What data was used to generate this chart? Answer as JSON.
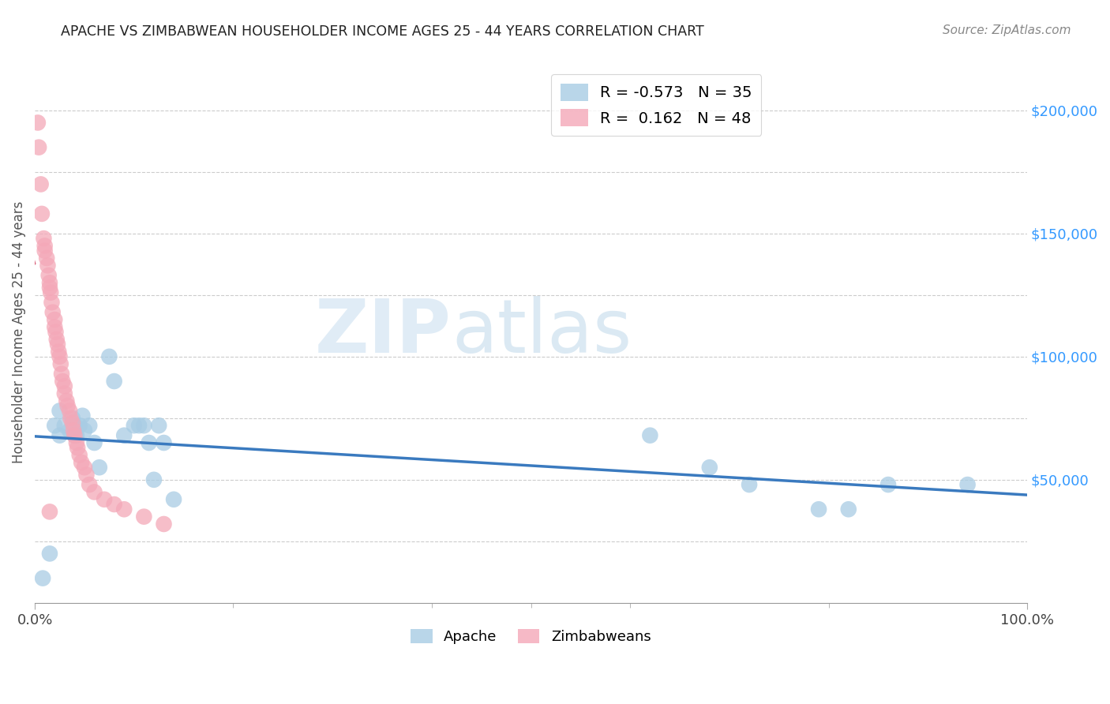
{
  "title": "APACHE VS ZIMBABWEAN HOUSEHOLDER INCOME AGES 25 - 44 YEARS CORRELATION CHART",
  "source": "Source: ZipAtlas.com",
  "ylabel": "Householder Income Ages 25 - 44 years",
  "xlim": [
    0.0,
    1.0
  ],
  "ylim": [
    0,
    220000
  ],
  "ytick_labels": [
    "$50,000",
    "$100,000",
    "$150,000",
    "$200,000"
  ],
  "ytick_values": [
    50000,
    100000,
    150000,
    200000
  ],
  "apache_color": "#a8cce4",
  "zimbabwean_color": "#f4a8b8",
  "apache_R": -0.573,
  "apache_N": 35,
  "zimbabwean_R": 0.162,
  "zimbabwean_N": 48,
  "apache_line_color": "#3a7abf",
  "zimbabwean_line_color": "#d9607a",
  "watermark_zip": "ZIP",
  "watermark_atlas": "atlas",
  "apache_x": [
    0.008,
    0.015,
    0.02,
    0.025,
    0.025,
    0.03,
    0.035,
    0.038,
    0.04,
    0.04,
    0.042,
    0.045,
    0.048,
    0.05,
    0.055,
    0.06,
    0.065,
    0.075,
    0.08,
    0.09,
    0.1,
    0.105,
    0.11,
    0.115,
    0.12,
    0.125,
    0.13,
    0.14,
    0.62,
    0.68,
    0.72,
    0.79,
    0.82,
    0.86,
    0.94
  ],
  "apache_y": [
    10000,
    20000,
    72000,
    68000,
    78000,
    72000,
    70000,
    75000,
    68000,
    72000,
    68000,
    72000,
    76000,
    70000,
    72000,
    65000,
    55000,
    100000,
    90000,
    68000,
    72000,
    72000,
    72000,
    65000,
    50000,
    72000,
    65000,
    42000,
    68000,
    55000,
    48000,
    38000,
    38000,
    48000,
    48000
  ],
  "zimbabwean_x": [
    0.003,
    0.004,
    0.006,
    0.007,
    0.009,
    0.01,
    0.01,
    0.012,
    0.013,
    0.014,
    0.015,
    0.015,
    0.016,
    0.017,
    0.018,
    0.02,
    0.02,
    0.021,
    0.022,
    0.023,
    0.024,
    0.025,
    0.026,
    0.027,
    0.028,
    0.03,
    0.03,
    0.032,
    0.033,
    0.035,
    0.036,
    0.038,
    0.039,
    0.04,
    0.042,
    0.043,
    0.045,
    0.047,
    0.05,
    0.052,
    0.055,
    0.06,
    0.07,
    0.08,
    0.09,
    0.11,
    0.13,
    0.015
  ],
  "zimbabwean_y": [
    195000,
    185000,
    170000,
    158000,
    148000,
    145000,
    143000,
    140000,
    137000,
    133000,
    130000,
    128000,
    126000,
    122000,
    118000,
    115000,
    112000,
    110000,
    107000,
    105000,
    102000,
    100000,
    97000,
    93000,
    90000,
    88000,
    85000,
    82000,
    80000,
    78000,
    75000,
    73000,
    70000,
    68000,
    65000,
    63000,
    60000,
    57000,
    55000,
    52000,
    48000,
    45000,
    42000,
    40000,
    38000,
    35000,
    32000,
    37000
  ],
  "grid_color": "#cccccc",
  "grid_yticks": [
    25000,
    50000,
    75000,
    100000,
    125000,
    150000,
    175000,
    200000
  ]
}
